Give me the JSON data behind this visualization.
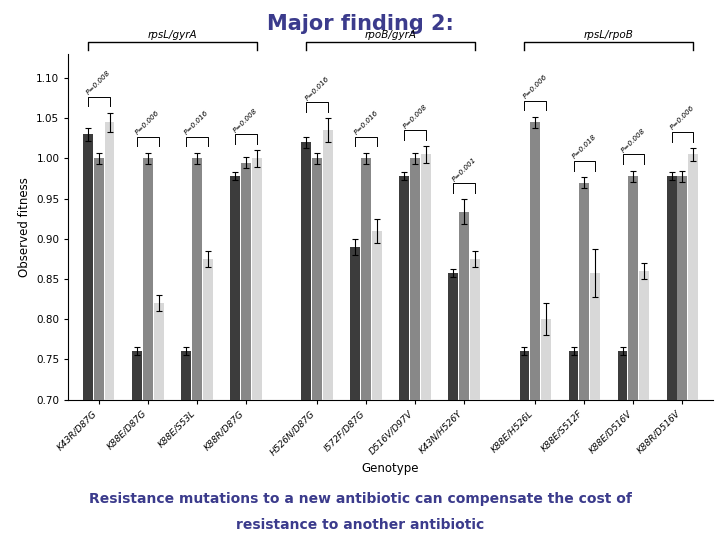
{
  "title": "Major finding 2:",
  "title_bg": "#FFD700",
  "title_color": "#3B3B8C",
  "footer_text1": "Resistance mutations to a new antibiotic can compensate the cost of",
  "footer_text2": "resistance to another antibiotic",
  "footer_bg": "#FFD700",
  "footer_color": "#3B3B8C",
  "ylabel": "Observed fitness",
  "xlabel": "Genotype",
  "ylim": [
    0.7,
    1.13
  ],
  "yticks": [
    0.7,
    0.75,
    0.8,
    0.85,
    0.9,
    0.95,
    1.0,
    1.05,
    1.1
  ],
  "groups": [
    "rpsL/gyrA",
    "rpoB/gyrA",
    "rpsL/rpoB"
  ],
  "genotypes": [
    "K43R/D87G",
    "K88E/D87G",
    "K88E/S53L",
    "K88R/D87G",
    "H526N/D87G",
    "I572F/D87G",
    "D516V/D97V",
    "K43N/H526Y",
    "K88E/H526L",
    "K88E/S512F",
    "K88E/D516V",
    "K88R/D516V"
  ],
  "bar1_values": [
    1.03,
    0.76,
    0.76,
    0.978,
    1.02,
    0.89,
    0.978,
    0.858,
    0.76,
    0.76,
    0.76,
    0.978
  ],
  "bar2_values": [
    1.0,
    1.0,
    1.0,
    0.995,
    1.0,
    1.0,
    1.0,
    0.934,
    1.045,
    0.97,
    0.978,
    0.978
  ],
  "bar3_values": [
    1.045,
    0.82,
    0.875,
    1.0,
    1.035,
    0.91,
    1.005,
    0.875,
    0.8,
    0.858,
    0.86,
    1.005
  ],
  "bar1_color": "#3C3C3C",
  "bar2_color": "#888888",
  "bar3_color": "#D8D8D8",
  "bar1_err": [
    0.008,
    0.005,
    0.005,
    0.005,
    0.007,
    0.01,
    0.005,
    0.005,
    0.005,
    0.005,
    0.005,
    0.005
  ],
  "bar2_err": [
    0.007,
    0.007,
    0.007,
    0.007,
    0.007,
    0.007,
    0.007,
    0.015,
    0.007,
    0.007,
    0.007,
    0.007
  ],
  "bar3_err": [
    0.012,
    0.01,
    0.01,
    0.01,
    0.015,
    0.015,
    0.01,
    0.01,
    0.02,
    0.03,
    0.01,
    0.008
  ],
  "p_values": [
    "P=0.008",
    "P=0.006",
    "P=0.016",
    "P=0.008",
    "P=0.016",
    "P=0.016",
    "P=0.008",
    "P=0.001",
    "P=0.006",
    "P=0.018",
    "P=0.008",
    "P=0.006"
  ],
  "bg_color": "#FFFFFF"
}
